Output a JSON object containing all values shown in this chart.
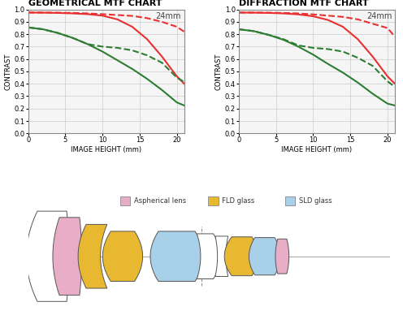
{
  "geo_title": "GEOMETRICAL MTF CHART",
  "diff_title": "DIFFRACTION MTF CHART",
  "focal_label": "24mm",
  "xlabel": "IMAGE HEIGHT (mm)",
  "ylabel": "CONTRAST",
  "xlim": [
    0,
    21
  ],
  "ylim": [
    0,
    1.0
  ],
  "xticks": [
    0,
    5,
    10,
    15,
    20
  ],
  "yticks": [
    0,
    0.1,
    0.2,
    0.3,
    0.4,
    0.5,
    0.6,
    0.7,
    0.8,
    0.9,
    1
  ],
  "geo_red_solid_x": [
    0,
    2,
    4,
    6,
    8,
    10,
    12,
    14,
    16,
    18,
    20,
    21
  ],
  "geo_red_solid_y": [
    0.975,
    0.974,
    0.972,
    0.968,
    0.962,
    0.95,
    0.92,
    0.86,
    0.76,
    0.62,
    0.46,
    0.4
  ],
  "geo_red_dashed_x": [
    0,
    2,
    4,
    6,
    8,
    10,
    12,
    14,
    16,
    18,
    20,
    21
  ],
  "geo_red_dashed_y": [
    0.975,
    0.975,
    0.974,
    0.972,
    0.968,
    0.962,
    0.955,
    0.948,
    0.93,
    0.9,
    0.86,
    0.82
  ],
  "geo_green_solid_x": [
    0,
    2,
    4,
    6,
    8,
    10,
    12,
    14,
    16,
    18,
    20,
    21
  ],
  "geo_green_solid_y": [
    0.855,
    0.84,
    0.81,
    0.77,
    0.72,
    0.66,
    0.59,
    0.52,
    0.44,
    0.35,
    0.25,
    0.225
  ],
  "geo_green_dashed_x": [
    0,
    2,
    4,
    6,
    8,
    10,
    12,
    14,
    16,
    18,
    20,
    21
  ],
  "geo_green_dashed_y": [
    0.855,
    0.84,
    0.81,
    0.77,
    0.72,
    0.7,
    0.69,
    0.67,
    0.63,
    0.57,
    0.45,
    0.415
  ],
  "diff_red_solid_x": [
    0,
    2,
    4,
    6,
    8,
    10,
    12,
    14,
    16,
    18,
    20,
    21
  ],
  "diff_red_solid_y": [
    0.975,
    0.974,
    0.972,
    0.968,
    0.96,
    0.945,
    0.915,
    0.86,
    0.76,
    0.62,
    0.46,
    0.4
  ],
  "diff_red_dashed_x": [
    0,
    2,
    4,
    6,
    8,
    10,
    12,
    14,
    16,
    18,
    20,
    21
  ],
  "diff_red_dashed_y": [
    0.975,
    0.975,
    0.974,
    0.972,
    0.968,
    0.96,
    0.95,
    0.94,
    0.92,
    0.885,
    0.85,
    0.78
  ],
  "diff_green_solid_x": [
    0,
    2,
    4,
    6,
    8,
    10,
    12,
    14,
    16,
    18,
    20,
    21
  ],
  "diff_green_solid_y": [
    0.84,
    0.825,
    0.795,
    0.755,
    0.7,
    0.635,
    0.56,
    0.49,
    0.41,
    0.32,
    0.24,
    0.225
  ],
  "diff_green_dashed_x": [
    0,
    2,
    4,
    6,
    8,
    10,
    12,
    14,
    16,
    18,
    20,
    21
  ],
  "diff_green_dashed_y": [
    0.84,
    0.825,
    0.795,
    0.76,
    0.71,
    0.69,
    0.68,
    0.66,
    0.61,
    0.545,
    0.42,
    0.375
  ],
  "red_color": "#e83030",
  "green_color": "#2e7d32",
  "bg_color": "#f5f5f5",
  "grid_color": "#cccccc",
  "title_fontsize": 8,
  "axis_label_fontsize": 6,
  "tick_fontsize": 6,
  "legend_labels": [
    "Aspherical lens",
    "FLD glass",
    "SLD glass"
  ],
  "legend_colors": [
    "#e8aec8",
    "#e8b830",
    "#a8d0e8"
  ],
  "edge_color": "#555555",
  "axis_line_color": "#aaaaaa",
  "stop_line_color": "#888888"
}
